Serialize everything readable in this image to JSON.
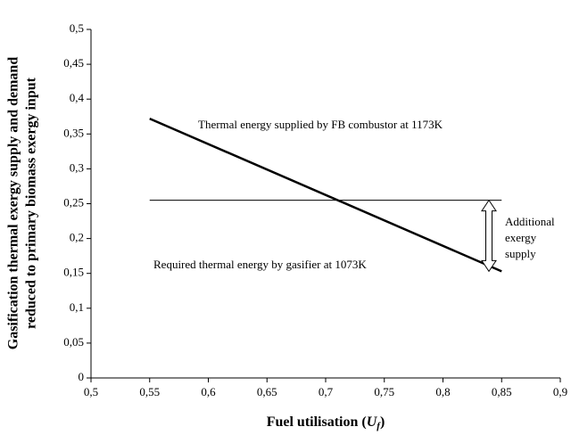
{
  "chart_data": {
    "type": "line",
    "ylabel": [
      "Gasification thermal exergy supply and demand",
      "reduced to primary biomass exergy  input"
    ],
    "xlabel": [
      "Fuel utilisation (",
      "U",
      "f",
      ")"
    ],
    "x": [
      0.55,
      0.85
    ],
    "series": [
      {
        "color": "#000000",
        "width": 2.5,
        "values": [
          0.372,
          0.153
        ]
      },
      {
        "color": "#000000",
        "width": 1,
        "values": [
          0.255,
          0.255
        ]
      }
    ],
    "annotations": [
      "Thermal energy supplied by FB combustor at 1173K",
      "Required thermal energy by gasifier at 1073K",
      [
        "Additional",
        "exergy",
        "supply"
      ]
    ],
    "xlim": [
      0.5,
      0.9
    ],
    "xticks": [
      {
        "value": 0.5,
        "label": "0,5"
      },
      {
        "value": 0.55,
        "label": "0,55"
      },
      {
        "value": 0.6,
        "label": "0,6"
      },
      {
        "value": 0.65,
        "label": "0,65"
      },
      {
        "value": 0.7,
        "label": "0,7"
      },
      {
        "value": 0.75,
        "label": "0,75"
      },
      {
        "value": 0.8,
        "label": "0,8"
      },
      {
        "value": 0.85,
        "label": "0,85"
      },
      {
        "value": 0.9,
        "label": "0,9"
      }
    ],
    "ylim": [
      0,
      0.5
    ],
    "yticks": [
      0,
      {
        "value": 0.05,
        "label": "0,05"
      },
      {
        "value": 0.1,
        "label": "0,1"
      },
      {
        "value": 0.15,
        "label": "0,15"
      },
      {
        "value": 0.2,
        "label": "0,2"
      },
      {
        "value": 0.25,
        "label": "0,25"
      },
      {
        "value": 0.3,
        "label": "0,3"
      },
      {
        "value": 0.35,
        "label": "0,35"
      },
      {
        "value": 0.4,
        "label": "0,4"
      },
      {
        "value": 0.45,
        "label": "0,45"
      },
      {
        "value": 0.5,
        "label": "0,5"
      }
    ],
    "grid": false
  }
}
